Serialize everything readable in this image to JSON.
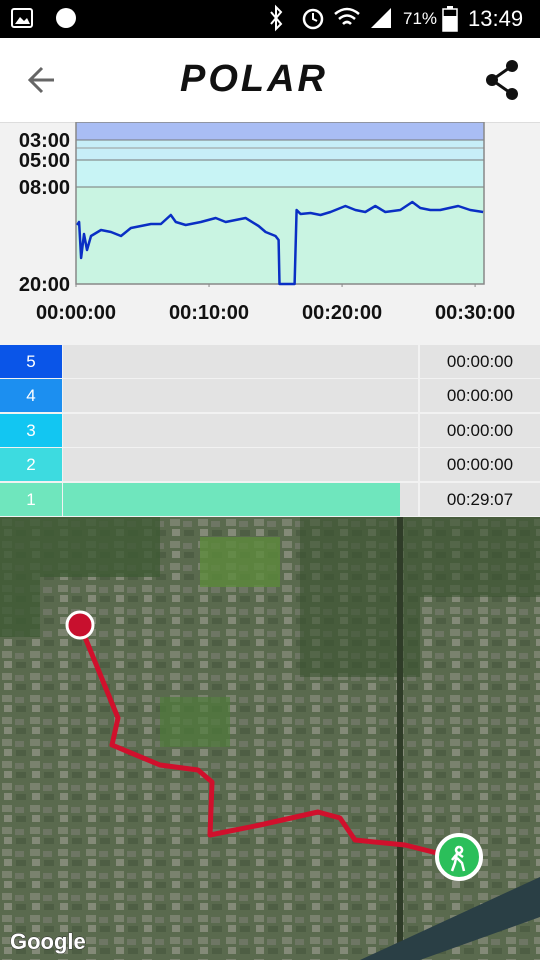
{
  "status_bar": {
    "battery": "71%",
    "time": "13:49"
  },
  "header": {
    "logo": "POLAR"
  },
  "chart_data": {
    "type": "line",
    "x": [
      0.08,
      0.23,
      0.38,
      0.6,
      0.83,
      1.13,
      1.88,
      2.63,
      3.38,
      4.13,
      4.88,
      5.63,
      6.38,
      7.13,
      7.5,
      8.25,
      9.38,
      10.5,
      11.25,
      12.0,
      12.75,
      13.73,
      14.25,
      15.0,
      15.23,
      15.3,
      16.43,
      16.58,
      16.88,
      17.63,
      18.38,
      19.13,
      20.25,
      21.0,
      21.75,
      22.5,
      23.25,
      24.38,
      25.28,
      25.88,
      26.63,
      27.38,
      28.73,
      29.63,
      30.6
    ],
    "values": [
      12.7,
      12.33,
      16.78,
      13.81,
      15.79,
      14.06,
      13.32,
      13.57,
      14.06,
      13.07,
      12.82,
      12.58,
      12.58,
      11.46,
      12.33,
      12.7,
      12.33,
      11.83,
      12.33,
      12.08,
      11.83,
      12.82,
      13.57,
      14.06,
      14.56,
      20,
      20,
      10.85,
      11.34,
      11.22,
      11.46,
      11.09,
      10.35,
      10.85,
      11.09,
      10.35,
      11.09,
      10.85,
      9.86,
      10.6,
      10.85,
      10.85,
      10.35,
      10.85,
      11.09
    ],
    "color": "#0a2fc4",
    "xlim": [
      0,
      30.67
    ],
    "xticks": [
      {
        "value": 0,
        "label": "00:00:00"
      },
      {
        "value": 10,
        "label": "00:10:00"
      },
      {
        "value": 20,
        "label": "00:20:00"
      },
      {
        "value": 30,
        "label": "00:30:00"
      }
    ],
    "ylim": [
      20,
      1.2
    ],
    "yticks": [
      {
        "value": 3,
        "label": "03:00"
      },
      {
        "value": 5,
        "label": "05:00"
      },
      {
        "value": 8,
        "label": "08:00"
      },
      {
        "value": 20,
        "label": "20:00"
      }
    ]
  },
  "zones": [
    {
      "zone": "5",
      "time": "00:00:00",
      "color": "#0a55e8"
    },
    {
      "zone": "4",
      "time": "00:00:00",
      "color": "#1c8ff0"
    },
    {
      "zone": "3",
      "time": "00:00:00",
      "color": "#12c6f2"
    },
    {
      "zone": "2",
      "time": "00:00:00",
      "color": "#3ddbe0"
    },
    {
      "zone": "1",
      "time": "00:29:07",
      "color": "#6fe6bd"
    }
  ],
  "map": {
    "attribution": "Google"
  }
}
